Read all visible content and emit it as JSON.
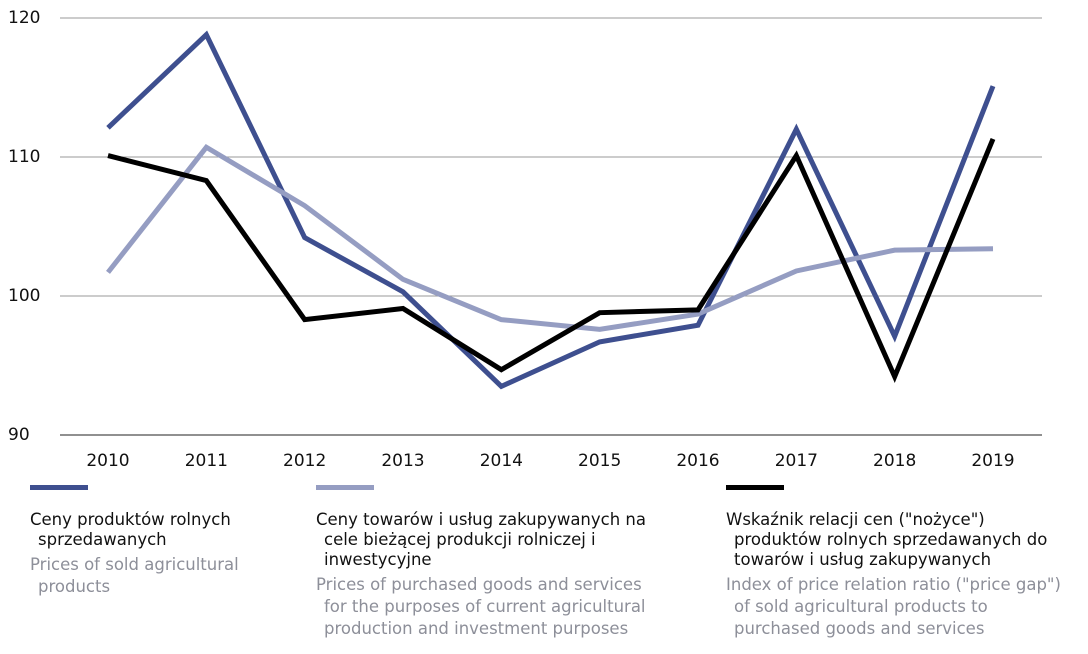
{
  "chart_data": {
    "type": "line",
    "categories": [
      "2010",
      "2011",
      "2012",
      "2013",
      "2014",
      "2015",
      "2016",
      "2017",
      "2018",
      "2019"
    ],
    "series": [
      {
        "name": "Ceny produktów rolnych sprzedawanych",
        "translation": "Prices of sold agricultural products",
        "color": "#3e4f8f",
        "values": [
          112.1,
          118.8,
          104.2,
          100.3,
          93.5,
          96.7,
          97.9,
          112.0,
          97.1,
          115.1
        ]
      },
      {
        "name": "Ceny towarów i usług zakupywanych na cele bieżącej produkcji rolniczej i inwestycyjne",
        "translation": "Prices of purchased goods and services for the purposes of current agricultural production and investment purposes",
        "color": "#959dc2",
        "values": [
          101.7,
          110.7,
          106.5,
          101.2,
          98.3,
          97.6,
          98.7,
          101.8,
          103.3,
          103.4
        ]
      },
      {
        "name": "Wskaźnik relacji cen (\"nożyce\") produktów rolnych sprzedawanych do towarów i usług zakupywanych",
        "translation": "Index of price relation ratio (\"price gap\") of sold agricultural products to purchased goods and services",
        "color": "#000000",
        "values": [
          110.1,
          108.3,
          98.3,
          99.1,
          94.7,
          98.8,
          99.0,
          110.1,
          94.2,
          111.3
        ]
      }
    ],
    "ylim": [
      90,
      120
    ],
    "yticks": [
      90,
      100,
      110,
      120
    ],
    "grid": true
  }
}
